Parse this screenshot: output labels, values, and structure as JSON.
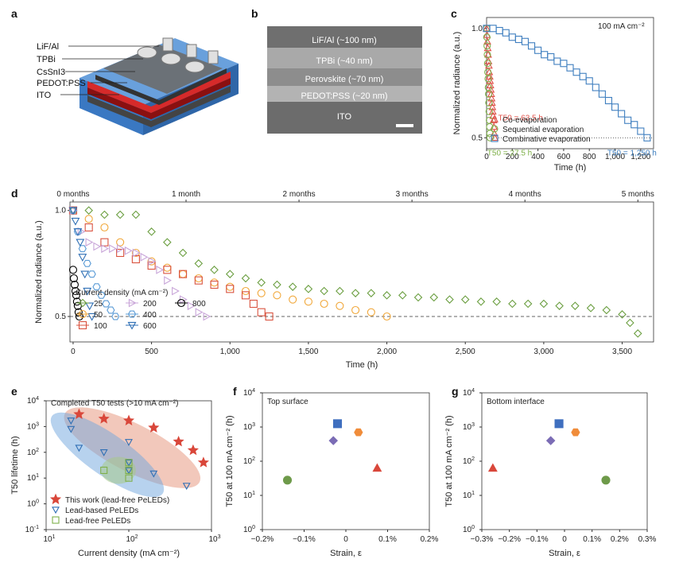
{
  "panel_labels": {
    "a": "a",
    "b": "b",
    "c": "c",
    "d": "d",
    "e": "e",
    "f": "f",
    "g": "g"
  },
  "colors": {
    "co": "#e0524a",
    "seq": "#7fb04a",
    "comb": "#3f7fbf",
    "c25": "#6a9e3f",
    "c50": "#f1a83b",
    "c100": "#d9533f",
    "c200": "#c9a6d9",
    "c400": "#5a9bd6",
    "c600": "#2f6fb5",
    "c800": "#000000",
    "purple": "#7b6cb5",
    "orange": "#f08c3a",
    "blue": "#3f6fbf",
    "red": "#d9473a",
    "green": "#6e9a4a"
  },
  "panel_a": {
    "layers": [
      "LiF/Al",
      "TPBi",
      "CsSnI3",
      "PEDOT:PSS",
      "ITO"
    ]
  },
  "panel_b": {
    "layers": [
      "LiF/Al (~100 nm)",
      "TPBi (~40 nm)",
      "Perovskite (~70 nm)",
      "PEDOT:PSS (~20 nm)",
      "ITO"
    ]
  },
  "chart_data": [
    {
      "id": "c",
      "type": "scatter",
      "annotation": "100 mA cm⁻²",
      "xlabel": "Time (h)",
      "ylabel": "Normalized radiance (a.u.)",
      "xlim": [
        0,
        1300
      ],
      "ylim": [
        0.45,
        1.05
      ],
      "xticks": [
        "0",
        "200",
        "400",
        "600",
        "800",
        "1,000",
        "1,200"
      ],
      "yticks": [
        "0.5",
        "1.0"
      ],
      "t50_labels": {
        "co": "T50 = 63.5 h",
        "seq": "T50 = 27.5 h",
        "comb": "T50 = 1,250 h"
      },
      "series": [
        {
          "name": "Co-evaporation",
          "marker": "triangle",
          "color_key": "co",
          "x": [
            0,
            3,
            6,
            9,
            12,
            15,
            18,
            21,
            24,
            27,
            30,
            33,
            36,
            39,
            42,
            45,
            48,
            51,
            54,
            57,
            60,
            63.5
          ],
          "y": [
            1.0,
            0.97,
            0.94,
            0.91,
            0.88,
            0.85,
            0.83,
            0.8,
            0.78,
            0.76,
            0.74,
            0.72,
            0.7,
            0.68,
            0.66,
            0.64,
            0.62,
            0.6,
            0.58,
            0.55,
            0.52,
            0.5
          ]
        },
        {
          "name": "Sequential evaporation",
          "marker": "circle",
          "color_key": "seq",
          "x": [
            0,
            2,
            4,
            6,
            8,
            10,
            12,
            14,
            16,
            18,
            20,
            22,
            24,
            26,
            27.5
          ],
          "y": [
            1.0,
            0.96,
            0.92,
            0.88,
            0.84,
            0.8,
            0.77,
            0.73,
            0.7,
            0.66,
            0.62,
            0.58,
            0.55,
            0.52,
            0.5
          ]
        },
        {
          "name": "Combinative evaporation",
          "marker": "square",
          "color_key": "comb",
          "x": [
            0,
            50,
            100,
            150,
            200,
            250,
            300,
            350,
            400,
            450,
            500,
            550,
            600,
            650,
            700,
            750,
            800,
            850,
            900,
            950,
            1000,
            1050,
            1100,
            1150,
            1200,
            1250
          ],
          "y": [
            1.0,
            1.0,
            0.99,
            0.98,
            0.96,
            0.95,
            0.94,
            0.92,
            0.9,
            0.88,
            0.87,
            0.85,
            0.84,
            0.82,
            0.8,
            0.78,
            0.76,
            0.73,
            0.7,
            0.67,
            0.64,
            0.61,
            0.58,
            0.56,
            0.53,
            0.5
          ]
        }
      ]
    },
    {
      "id": "d",
      "type": "scatter",
      "xlabel": "Time (h)",
      "ylabel": "Normalized radiance (a.u.)",
      "xlim": [
        -20,
        3700
      ],
      "ylim": [
        0.38,
        1.04
      ],
      "xticks": [
        "0",
        "500",
        "1,000",
        "1,500",
        "2,000",
        "2,500",
        "3,000",
        "3,500"
      ],
      "yticks": [
        "0.5",
        "1.0"
      ],
      "top_ticks": [
        "0 months",
        "1 month",
        "2 months",
        "3 months",
        "4 months",
        "5 months"
      ],
      "legend_title": "Current density (mA cm⁻²)",
      "series": [
        {
          "name": "25",
          "marker": "diamond",
          "color_key": "c25",
          "x": [
            0,
            100,
            200,
            300,
            400,
            500,
            600,
            700,
            800,
            900,
            1000,
            1100,
            1200,
            1300,
            1400,
            1500,
            1600,
            1700,
            1800,
            1900,
            2000,
            2100,
            2200,
            2300,
            2400,
            2500,
            2600,
            2700,
            2800,
            2900,
            3000,
            3100,
            3200,
            3300,
            3400,
            3500,
            3550,
            3600
          ],
          "y": [
            1.0,
            1.0,
            0.98,
            0.98,
            0.98,
            0.9,
            0.85,
            0.8,
            0.75,
            0.72,
            0.7,
            0.68,
            0.66,
            0.65,
            0.64,
            0.63,
            0.62,
            0.62,
            0.61,
            0.61,
            0.6,
            0.6,
            0.59,
            0.59,
            0.58,
            0.58,
            0.57,
            0.57,
            0.56,
            0.56,
            0.56,
            0.55,
            0.55,
            0.54,
            0.53,
            0.51,
            0.47,
            0.42
          ]
        },
        {
          "name": "50",
          "marker": "circle",
          "color_key": "c50",
          "x": [
            0,
            100,
            200,
            300,
            400,
            500,
            600,
            700,
            800,
            900,
            1000,
            1100,
            1200,
            1300,
            1400,
            1500,
            1600,
            1700,
            1800,
            1900,
            2000
          ],
          "y": [
            1.0,
            0.96,
            0.92,
            0.85,
            0.8,
            0.76,
            0.73,
            0.7,
            0.68,
            0.66,
            0.64,
            0.62,
            0.61,
            0.6,
            0.58,
            0.57,
            0.56,
            0.55,
            0.53,
            0.52,
            0.5
          ]
        },
        {
          "name": "100",
          "marker": "square",
          "color_key": "c100",
          "x": [
            0,
            100,
            200,
            300,
            400,
            500,
            600,
            700,
            800,
            900,
            1000,
            1100,
            1150,
            1200,
            1250
          ],
          "y": [
            1.0,
            0.92,
            0.85,
            0.8,
            0.77,
            0.74,
            0.72,
            0.7,
            0.67,
            0.65,
            0.63,
            0.6,
            0.56,
            0.52,
            0.5
          ]
        },
        {
          "name": "200",
          "marker": "triangle-right",
          "color_key": "c200",
          "x": [
            0,
            50,
            100,
            150,
            200,
            250,
            300,
            350,
            400,
            450,
            500,
            550,
            600,
            650,
            700,
            750,
            800,
            850
          ],
          "y": [
            1.0,
            0.9,
            0.85,
            0.83,
            0.82,
            0.82,
            0.82,
            0.81,
            0.8,
            0.78,
            0.76,
            0.72,
            0.67,
            0.62,
            0.58,
            0.55,
            0.52,
            0.5
          ]
        },
        {
          "name": "400",
          "marker": "hexagon",
          "color_key": "c400",
          "x": [
            0,
            30,
            60,
            90,
            120,
            150,
            180,
            210,
            240,
            270
          ],
          "y": [
            1.0,
            0.9,
            0.82,
            0.75,
            0.7,
            0.64,
            0.6,
            0.56,
            0.53,
            0.5
          ]
        },
        {
          "name": "600",
          "marker": "triangle-down",
          "color_key": "c600",
          "x": [
            0,
            15,
            30,
            45,
            60,
            75,
            90,
            105,
            120
          ],
          "y": [
            1.0,
            0.95,
            0.9,
            0.85,
            0.78,
            0.7,
            0.62,
            0.55,
            0.5
          ]
        },
        {
          "name": "800",
          "marker": "circle",
          "color_key": "c800",
          "x": [
            0,
            5,
            10,
            15,
            20,
            25,
            30,
            35,
            40
          ],
          "y": [
            0.72,
            0.68,
            0.65,
            0.62,
            0.6,
            0.57,
            0.55,
            0.52,
            0.5
          ]
        }
      ]
    },
    {
      "id": "e",
      "type": "scatter",
      "title": "Completed T50 tests (>10 mA cm⁻²)",
      "xlabel": "Current density (mA cm⁻²)",
      "ylabel": "T50 lifetime (h)",
      "xscale": "log",
      "yscale": "log",
      "xlim": [
        10,
        1000
      ],
      "ylim": [
        0.1,
        10000
      ],
      "xticks": [
        "10",
        "10²",
        "10³"
      ],
      "yticks": [
        "10⁻¹",
        "10⁰",
        "10¹",
        "10²",
        "10³",
        "10⁴"
      ],
      "series": [
        {
          "name": "This work (lead-free PeLEDs)",
          "marker": "star",
          "color_key": "red",
          "x": [
            25,
            50,
            100,
            200,
            400,
            600,
            800
          ],
          "y": [
            3000,
            2000,
            1700,
            900,
            260,
            120,
            40
          ]
        },
        {
          "name": "Lead-based PeLEDs",
          "marker": "triangle-down",
          "color_key": "c600",
          "x": [
            20,
            20,
            25,
            50,
            100,
            100,
            100,
            200,
            500
          ],
          "y": [
            1700,
            800,
            150,
            100,
            250,
            40,
            20,
            15,
            5
          ]
        },
        {
          "name": "Lead-free PeLEDs",
          "marker": "square-open",
          "color_key": "seq",
          "x": [
            50,
            100,
            100,
            100
          ],
          "y": [
            20,
            40,
            20,
            10
          ]
        }
      ]
    },
    {
      "id": "f",
      "type": "scatter",
      "title": "Top surface",
      "xlabel": "Strain, ε",
      "ylabel": "T50 at 100 mA cm⁻² (h)",
      "xlim": [
        -0.2,
        0.2
      ],
      "ylim": [
        1,
        10000
      ],
      "yscale": "log",
      "xticks": [
        "−0.2%",
        "−0.1%",
        "0",
        "0.1%",
        "0.2%"
      ],
      "yticks": [
        "10⁰",
        "10¹",
        "10²",
        "10³",
        "10⁴"
      ],
      "points": [
        {
          "x": -0.14,
          "y": 28,
          "marker": "circle",
          "color_key": "green"
        },
        {
          "x": -0.03,
          "y": 400,
          "marker": "diamond",
          "color_key": "purple"
        },
        {
          "x": -0.02,
          "y": 1250,
          "marker": "square",
          "color_key": "blue"
        },
        {
          "x": 0.03,
          "y": 700,
          "marker": "hexagon",
          "color_key": "orange"
        },
        {
          "x": 0.075,
          "y": 63,
          "marker": "triangle",
          "color_key": "red"
        }
      ]
    },
    {
      "id": "g",
      "type": "scatter",
      "title": "Bottom interface",
      "xlabel": "Strain, ε",
      "ylabel": "T50 at 100 mA cm⁻² (h)",
      "xlim": [
        -0.3,
        0.3
      ],
      "ylim": [
        1,
        10000
      ],
      "yscale": "log",
      "xticks": [
        "−0.3%",
        "−0.2%",
        "−0.1%",
        "0",
        "0.1%",
        "0.2%",
        "0.3%"
      ],
      "yticks": [
        "10⁰",
        "10¹",
        "10²",
        "10³",
        "10⁴"
      ],
      "points": [
        {
          "x": -0.26,
          "y": 63,
          "marker": "triangle",
          "color_key": "red"
        },
        {
          "x": -0.05,
          "y": 400,
          "marker": "diamond",
          "color_key": "purple"
        },
        {
          "x": -0.02,
          "y": 1250,
          "marker": "square",
          "color_key": "blue"
        },
        {
          "x": 0.04,
          "y": 700,
          "marker": "hexagon",
          "color_key": "orange"
        },
        {
          "x": 0.15,
          "y": 28,
          "marker": "circle",
          "color_key": "green"
        }
      ]
    }
  ]
}
